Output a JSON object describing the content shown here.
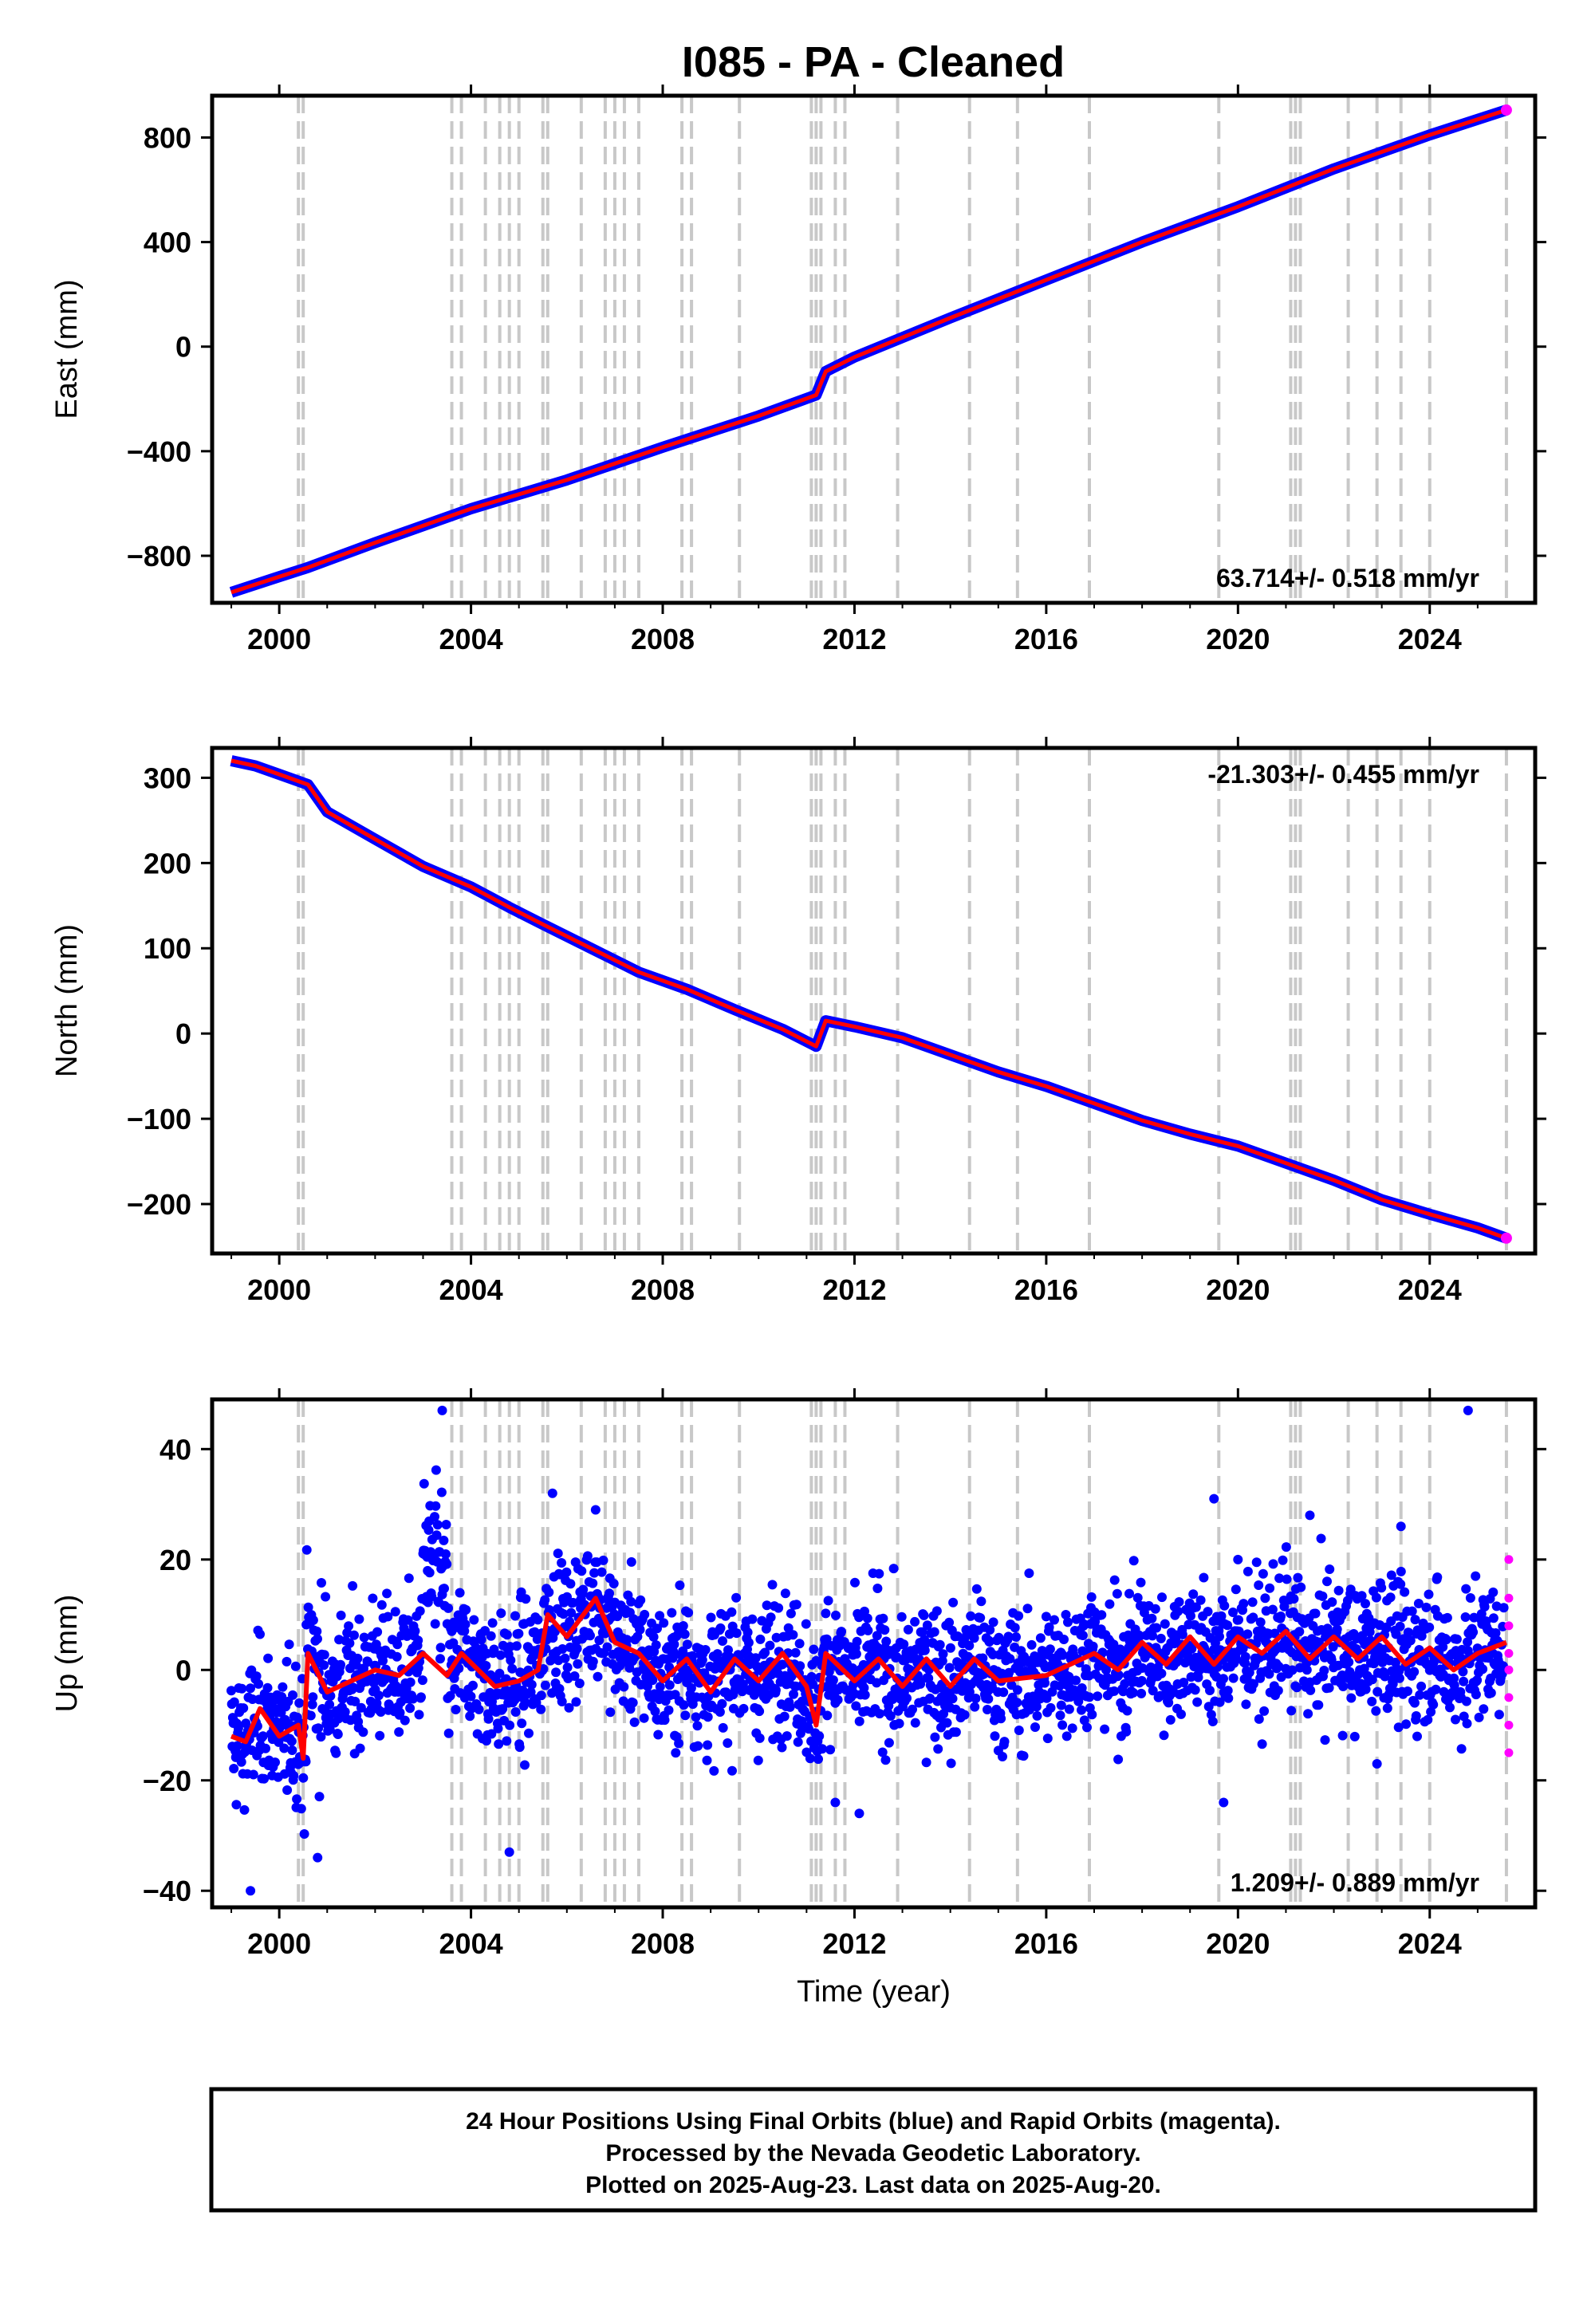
{
  "title": "I085  - PA - Cleaned",
  "footer": {
    "line1": "24 Hour Positions Using Final Orbits (blue) and Rapid Orbits (magenta).",
    "line2": "Processed by the Nevada Geodetic Laboratory.",
    "line3": "Plotted on 2025-Aug-23. Last data on 2025-Aug-20."
  },
  "colors": {
    "final": "#0000ff",
    "rapid": "#ff00ff",
    "model": "#ff0000",
    "steps": "#c8c8c8"
  },
  "chart_data": [
    {
      "type": "scatter",
      "component": "east",
      "ylabel": "East (mm)",
      "xlabel": "",
      "xlim": [
        1998.6,
        2026.2
      ],
      "ylim": [
        -980,
        960
      ],
      "xticks": [
        2000,
        2004,
        2008,
        2012,
        2016,
        2020,
        2024
      ],
      "yticks": [
        -800,
        -400,
        0,
        400,
        800
      ],
      "rate": "63.714+/- 0.518 mm/yr",
      "rate_position": "bottom-right",
      "grid": false,
      "series": [
        {
          "x": [
            1999.0,
            2000.0,
            2000.6,
            2002.0,
            2004.0,
            2006.0,
            2008.0,
            2010.0,
            2011.2,
            2011.4,
            2012.0,
            2014.0,
            2016.0,
            2018.0,
            2020.0,
            2022.0,
            2024.0,
            2025.6
          ],
          "y": [
            -940,
            -880,
            -845,
            -750,
            -620,
            -510,
            -385,
            -265,
            -185,
            -95,
            -40,
            110,
            255,
            400,
            535,
            680,
            810,
            905
          ]
        }
      ],
      "step_epochs": [
        2000.4,
        2000.5,
        2003.6,
        2003.8,
        2004.3,
        2004.6,
        2004.8,
        2005.0,
        2005.5,
        2005.6,
        2006.3,
        2006.8,
        2007.0,
        2007.2,
        2007.5,
        2008.4,
        2008.6,
        2009.6,
        2011.1,
        2011.2,
        2011.3,
        2011.6,
        2011.8,
        2012.9,
        2014.4,
        2015.4,
        2016.9,
        2019.6,
        2021.1,
        2021.2,
        2021.3,
        2022.3,
        2022.9,
        2023.4,
        2024.0,
        2025.6
      ]
    },
    {
      "type": "scatter",
      "component": "north",
      "ylabel": "North (mm)",
      "xlabel": "",
      "xlim": [
        1998.6,
        2026.2
      ],
      "ylim": [
        -258,
        335
      ],
      "xticks": [
        2000,
        2004,
        2008,
        2012,
        2016,
        2020,
        2024
      ],
      "yticks": [
        -200,
        -100,
        0,
        100,
        200,
        300
      ],
      "rate": "-21.303+/- 0.455 mm/yr",
      "rate_position": "top-right",
      "grid": false,
      "series": [
        {
          "x": [
            1999.0,
            1999.5,
            2000.0,
            2000.6,
            2001.0,
            2002.0,
            2003.0,
            2004.0,
            2004.8,
            2005.5,
            2006.5,
            2007.5,
            2008.5,
            2009.5,
            2010.5,
            2011.2,
            2011.4,
            2012.0,
            2013.0,
            2014.0,
            2015.0,
            2016.0,
            2017.0,
            2018.0,
            2019.0,
            2020.0,
            2021.0,
            2022.0,
            2023.0,
            2024.0,
            2025.0,
            2025.6
          ],
          "y": [
            320,
            314,
            304,
            292,
            260,
            228,
            196,
            172,
            148,
            128,
            100,
            72,
            52,
            28,
            5,
            -15,
            15,
            8,
            -5,
            -25,
            -45,
            -62,
            -82,
            -102,
            -118,
            -132,
            -152,
            -172,
            -195,
            -212,
            -228,
            -240
          ]
        }
      ],
      "step_epochs": [
        2000.4,
        2000.5,
        2003.6,
        2003.8,
        2004.3,
        2004.6,
        2004.8,
        2005.0,
        2005.5,
        2005.6,
        2006.3,
        2006.8,
        2007.0,
        2007.2,
        2007.5,
        2008.4,
        2008.6,
        2009.6,
        2011.1,
        2011.2,
        2011.3,
        2011.6,
        2011.8,
        2012.9,
        2014.4,
        2015.4,
        2016.9,
        2019.6,
        2021.1,
        2021.2,
        2021.3,
        2022.3,
        2022.9,
        2023.4,
        2024.0,
        2025.6
      ]
    },
    {
      "type": "scatter",
      "component": "up",
      "ylabel": "Up (mm)",
      "xlabel": "Time (year)",
      "xlim": [
        1998.6,
        2026.2
      ],
      "ylim": [
        -43,
        49
      ],
      "xticks": [
        2000,
        2004,
        2008,
        2012,
        2016,
        2020,
        2024
      ],
      "yticks": [
        -40,
        -20,
        0,
        20,
        40
      ],
      "rate": "1.209+/- 0.889 mm/yr",
      "rate_position": "bottom-right",
      "grid": false,
      "model": {
        "x": [
          1999.0,
          1999.3,
          1999.6,
          2000.0,
          2000.4,
          2000.5,
          2000.6,
          2001.0,
          2001.5,
          2002.0,
          2002.5,
          2003.0,
          2003.5,
          2003.8,
          2004.5,
          2005.0,
          2005.4,
          2005.6,
          2006.0,
          2006.6,
          2007.0,
          2007.5,
          2008.0,
          2008.5,
          2009.0,
          2009.5,
          2010.0,
          2010.5,
          2011.0,
          2011.2,
          2011.4,
          2012.0,
          2012.5,
          2013.0,
          2013.5,
          2014.0,
          2014.5,
          2015.0,
          2016.0,
          2017.0,
          2017.5,
          2018.0,
          2018.5,
          2019.0,
          2019.5,
          2020.0,
          2020.5,
          2021.0,
          2021.5,
          2022.0,
          2022.5,
          2023.0,
          2023.5,
          2024.0,
          2024.5,
          2025.0,
          2025.6
        ],
        "y": [
          -12,
          -13,
          -7,
          -12,
          -10,
          -16,
          3,
          -4,
          -2,
          0,
          -1,
          3,
          -1,
          3,
          -3,
          -2,
          0,
          10,
          6,
          13,
          5,
          3,
          -2,
          2,
          -4,
          2,
          -2,
          3,
          -3,
          -10,
          3,
          -2,
          2,
          -3,
          2,
          -3,
          2,
          -2,
          -1,
          3,
          0,
          5,
          1,
          6,
          1,
          6,
          3,
          7,
          2,
          6,
          2,
          6,
          1,
          4,
          0,
          3,
          5
        ]
      },
      "step_epochs": [
        2000.4,
        2000.5,
        2003.6,
        2003.8,
        2004.3,
        2004.6,
        2004.8,
        2005.0,
        2005.5,
        2005.6,
        2006.3,
        2006.8,
        2007.0,
        2007.2,
        2007.5,
        2008.4,
        2008.6,
        2009.6,
        2011.1,
        2011.2,
        2011.3,
        2011.6,
        2011.8,
        2012.9,
        2014.4,
        2015.4,
        2016.9,
        2019.6,
        2021.1,
        2021.2,
        2021.3,
        2022.3,
        2022.9,
        2023.4,
        2024.0,
        2025.6
      ],
      "outliers": [
        {
          "x": 2003.4,
          "y": 47
        },
        {
          "x": 2024.8,
          "y": 47
        },
        {
          "x": 1999.4,
          "y": -40
        },
        {
          "x": 2000.8,
          "y": -34
        },
        {
          "x": 2004.8,
          "y": -33
        },
        {
          "x": 2019.7,
          "y": -24
        },
        {
          "x": 2012.1,
          "y": -26
        },
        {
          "x": 2011.6,
          "y": -24
        },
        {
          "x": 2005.7,
          "y": 32
        },
        {
          "x": 2019.5,
          "y": 31
        },
        {
          "x": 2021.5,
          "y": 28
        },
        {
          "x": 2023.4,
          "y": 26
        },
        {
          "x": 2006.6,
          "y": 29
        },
        {
          "x": 2022.9,
          "y": -17
        }
      ]
    }
  ]
}
